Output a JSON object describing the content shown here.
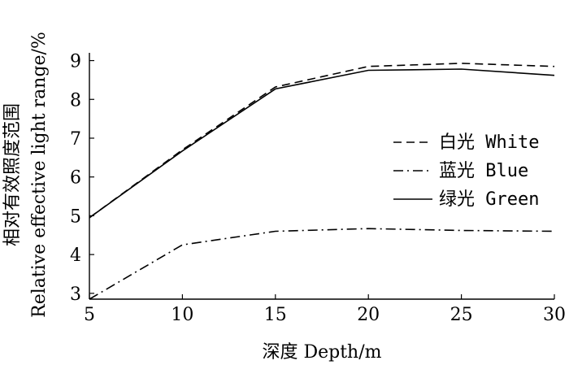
{
  "chart_data": {
    "type": "line",
    "xlabel": "深度 Depth/m",
    "ylabel": [
      "相对有效照度范围",
      "Relative effective light range/%"
    ],
    "xlim": [
      5,
      30
    ],
    "ylim": [
      2.85,
      9.2
    ],
    "xticks": [
      5,
      10,
      15,
      20,
      25,
      30
    ],
    "yticks": [
      3,
      4,
      5,
      6,
      7,
      8,
      9
    ],
    "grid": false,
    "legend_position": "right",
    "x": [
      5,
      10,
      15,
      20,
      25,
      30
    ],
    "series": [
      {
        "name": "白光 White",
        "values": [
          4.95,
          6.7,
          8.32,
          8.85,
          8.93,
          8.85
        ],
        "dash": "10,6"
      },
      {
        "name": "蓝光 Blue",
        "values": [
          2.85,
          4.25,
          4.6,
          4.67,
          4.62,
          4.6
        ],
        "dash": "12,5,2,5"
      },
      {
        "name": "绿光 Green",
        "values": [
          4.95,
          6.67,
          8.27,
          8.75,
          8.78,
          8.62
        ],
        "dash": ""
      }
    ]
  }
}
